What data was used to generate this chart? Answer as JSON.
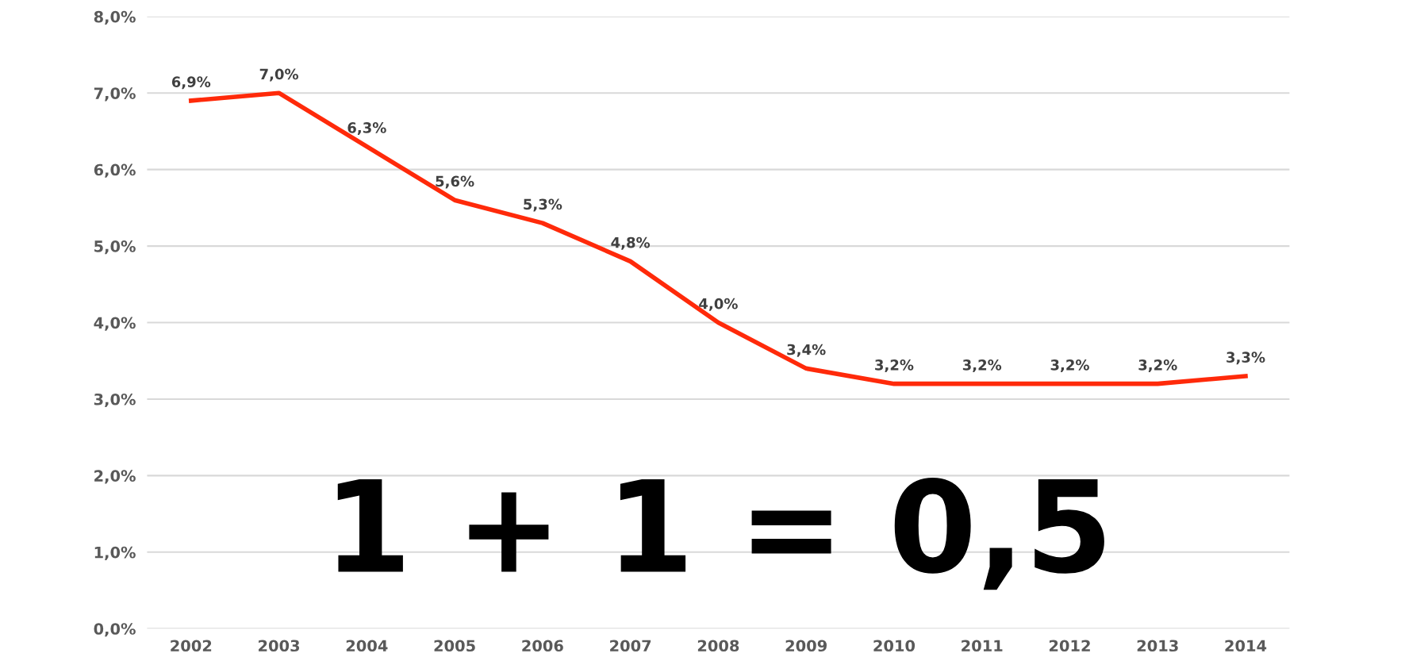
{
  "chart_data": {
    "type": "line",
    "categories": [
      "2002",
      "2003",
      "2004",
      "2005",
      "2006",
      "2007",
      "2008",
      "2009",
      "2010",
      "2011",
      "2012",
      "2013",
      "2014"
    ],
    "series": [
      {
        "color": "#ff2a0a",
        "values": [
          6.9,
          7.0,
          6.3,
          5.6,
          5.3,
          4.8,
          4.0,
          3.4,
          3.2,
          3.2,
          3.2,
          3.2,
          3.3
        ],
        "value_labels": [
          "6,9%",
          "7,0%",
          "6,3%",
          "5,6%",
          "5,3%",
          "4,8%",
          "4,0%",
          "3,4%",
          "3,2%",
          "3,2%",
          "3,2%",
          "3,2%",
          "3,3%"
        ]
      }
    ],
    "ylim": [
      0,
      8
    ],
    "yticks": [
      {
        "value": 0,
        "label": "0,0%"
      },
      {
        "value": 1,
        "label": "1,0%"
      },
      {
        "value": 2,
        "label": "2,0%"
      },
      {
        "value": 3,
        "label": "3,0%"
      },
      {
        "value": 4,
        "label": "4,0%"
      },
      {
        "value": 5,
        "label": "5,0%"
      },
      {
        "value": 6,
        "label": "6,0%"
      },
      {
        "value": 7,
        "label": "7,0%"
      },
      {
        "value": 8,
        "label": "8,0%"
      }
    ],
    "grid": "y",
    "marker": "none",
    "line_style": "solid",
    "annotations": [
      "1 + 1 = 0,5"
    ]
  }
}
